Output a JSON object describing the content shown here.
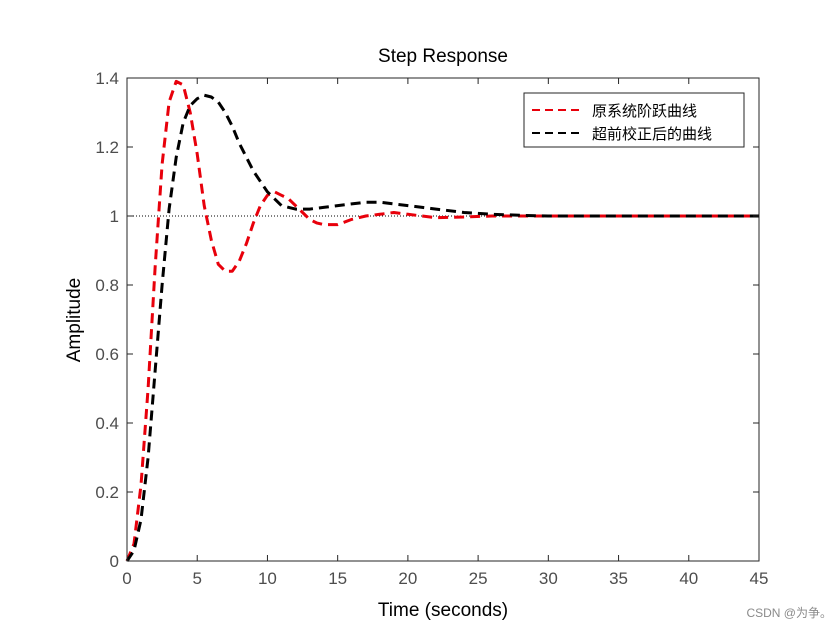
{
  "chart_data": {
    "type": "line",
    "title": "Step Response",
    "xlabel": "Time (seconds)",
    "ylabel": "Amplitude",
    "xlim": [
      0,
      45
    ],
    "ylim": [
      0,
      1.4
    ],
    "xticks": [
      0,
      5,
      10,
      15,
      20,
      25,
      30,
      35,
      40,
      45
    ],
    "xtick_labels": [
      "0",
      "5",
      "10",
      "15",
      "20",
      "25",
      "30",
      "35",
      "40",
      "45"
    ],
    "yticks": [
      0,
      0.2,
      0.4,
      0.6,
      0.8,
      1,
      1.2,
      1.4
    ],
    "ytick_labels": [
      "0",
      "0.2",
      "0.4",
      "0.6",
      "0.8",
      "1",
      "1.2",
      "1.4"
    ],
    "grid": false,
    "legend_position": "top-right",
    "reference_line": {
      "y": 1,
      "style": "dotted",
      "color": "#000000"
    },
    "series": [
      {
        "name": "原系统阶跃曲线",
        "color": "#e8000b",
        "style": "dashed",
        "x": [
          0,
          0.5,
          1,
          1.5,
          2,
          2.5,
          3,
          3.5,
          4,
          4.5,
          5,
          5.5,
          6,
          6.5,
          7,
          7.5,
          8,
          8.5,
          9,
          9.5,
          10,
          10.5,
          11,
          11.5,
          12,
          12.5,
          13,
          13.5,
          14,
          15,
          16,
          17,
          18,
          19,
          20,
          22,
          24,
          26,
          28,
          30,
          35,
          40,
          45
        ],
        "y": [
          0,
          0.05,
          0.22,
          0.5,
          0.85,
          1.15,
          1.33,
          1.39,
          1.38,
          1.3,
          1.18,
          1.03,
          0.93,
          0.86,
          0.84,
          0.84,
          0.87,
          0.92,
          0.98,
          1.03,
          1.06,
          1.07,
          1.06,
          1.05,
          1.03,
          1.01,
          0.99,
          0.98,
          0.975,
          0.975,
          0.99,
          1.0,
          1.005,
          1.01,
          1.005,
          0.995,
          0.997,
          1.0,
          1.0,
          1.0,
          1.0,
          1.0,
          1.0
        ]
      },
      {
        "name": "超前校正后的曲线",
        "color": "#000000",
        "style": "dashed",
        "x": [
          0,
          0.5,
          1,
          1.5,
          2,
          2.5,
          3,
          3.5,
          4,
          4.5,
          5,
          5.5,
          6,
          6.5,
          7,
          7.5,
          8,
          9,
          10,
          11,
          12,
          13,
          14,
          15,
          16,
          17,
          18,
          19,
          20,
          22,
          24,
          26,
          28,
          30,
          35,
          40,
          45
        ],
        "y": [
          0,
          0.03,
          0.12,
          0.3,
          0.55,
          0.8,
          1.02,
          1.17,
          1.27,
          1.32,
          1.34,
          1.35,
          1.345,
          1.33,
          1.3,
          1.26,
          1.21,
          1.13,
          1.07,
          1.03,
          1.02,
          1.02,
          1.025,
          1.03,
          1.035,
          1.04,
          1.04,
          1.035,
          1.03,
          1.02,
          1.01,
          1.005,
          1.002,
          1.0,
          1.0,
          1.0,
          1.0
        ]
      }
    ]
  },
  "watermark": "CSDN @为争。"
}
